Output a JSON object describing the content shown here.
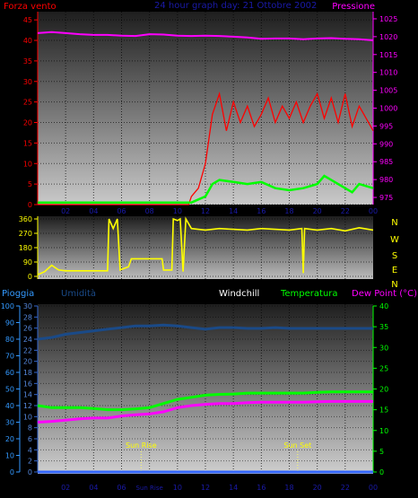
{
  "header": {
    "left_label": "Forza vento",
    "center_label": "24 hour graph day: 21 Ottobre 2002",
    "right_label": "Pressione"
  },
  "x_ticks": [
    "02",
    "04",
    "06",
    "08",
    "10",
    "12",
    "14",
    "16",
    "18",
    "20",
    "22",
    "00"
  ],
  "lower_x_ticks": [
    "02",
    "04",
    "06",
    "Sun Rise",
    "10",
    "12",
    "14",
    "16",
    "18",
    "20",
    "22",
    "00"
  ],
  "sun": {
    "rise_label": "Sun Rise",
    "set_label": "Sun Set",
    "rise_hour": 7.4,
    "set_hour": 18.6
  },
  "chart_data": [
    {
      "type": "line",
      "name": "wind-pressure",
      "x_unit": "hour",
      "y_left": {
        "label": "Forza vento",
        "range": [
          0,
          47
        ],
        "ticks": [
          0,
          5,
          10,
          15,
          20,
          25,
          30,
          35,
          40,
          45
        ],
        "color": "#ff0000"
      },
      "y_right": {
        "label": "Pressione",
        "range": [
          973,
          1027
        ],
        "ticks": [
          975,
          980,
          985,
          990,
          995,
          1000,
          1005,
          1010,
          1015,
          1020,
          1025
        ],
        "color": "#ff00ff"
      },
      "series": [
        {
          "name": "Pressione",
          "axis": "right",
          "color": "#ff00ff",
          "points": [
            [
              0,
              1021
            ],
            [
              1,
              1021.3
            ],
            [
              2,
              1021
            ],
            [
              3,
              1020.7
            ],
            [
              4,
              1020.5
            ],
            [
              5,
              1020.5
            ],
            [
              6,
              1020.3
            ],
            [
              7,
              1020.2
            ],
            [
              8,
              1020.7
            ],
            [
              9,
              1020.6
            ],
            [
              10,
              1020.3
            ],
            [
              11,
              1020.2
            ],
            [
              12,
              1020.3
            ],
            [
              13,
              1020.2
            ],
            [
              14,
              1020
            ],
            [
              15,
              1019.8
            ],
            [
              16,
              1019.4
            ],
            [
              17,
              1019.5
            ],
            [
              18,
              1019.5
            ],
            [
              19,
              1019.3
            ],
            [
              20,
              1019.5
            ],
            [
              21,
              1019.6
            ],
            [
              22,
              1019.4
            ],
            [
              23,
              1019.3
            ],
            [
              24,
              1019
            ]
          ]
        },
        {
          "name": "Forza vento (raffiche)",
          "axis": "left",
          "color": "#ff0000",
          "points": [
            [
              0,
              0
            ],
            [
              10.8,
              0
            ],
            [
              11,
              2
            ],
            [
              11.5,
              4
            ],
            [
              12,
              10
            ],
            [
              12.5,
              22
            ],
            [
              13,
              27
            ],
            [
              13.5,
              18
            ],
            [
              14,
              25
            ],
            [
              14.5,
              20
            ],
            [
              15,
              24
            ],
            [
              15.5,
              19
            ],
            [
              16,
              22
            ],
            [
              16.5,
              26
            ],
            [
              17,
              20
            ],
            [
              17.5,
              24
            ],
            [
              18,
              21
            ],
            [
              18.5,
              25
            ],
            [
              19,
              20
            ],
            [
              19.5,
              24
            ],
            [
              20,
              27
            ],
            [
              20.5,
              21
            ],
            [
              21,
              26
            ],
            [
              21.5,
              20
            ],
            [
              22,
              27
            ],
            [
              22.5,
              19
            ],
            [
              23,
              24
            ],
            [
              23.5,
              21
            ],
            [
              24,
              18
            ]
          ]
        },
        {
          "name": "Forza vento (media)",
          "axis": "left",
          "color": "#00ff00",
          "points": [
            [
              0,
              0.5
            ],
            [
              11,
              0.5
            ],
            [
              12,
              2
            ],
            [
              12.5,
              5
            ],
            [
              13,
              6
            ],
            [
              14,
              5.5
            ],
            [
              15,
              5
            ],
            [
              16,
              5.5
            ],
            [
              17,
              4
            ],
            [
              18,
              3.5
            ],
            [
              19,
              4
            ],
            [
              20,
              5
            ],
            [
              20.5,
              7
            ],
            [
              21,
              6
            ],
            [
              22,
              4
            ],
            [
              22.5,
              3
            ],
            [
              23,
              5
            ],
            [
              24,
              4
            ]
          ]
        }
      ]
    },
    {
      "type": "line",
      "name": "wind-direction",
      "x_unit": "hour",
      "y_left": {
        "range": [
          0,
          360
        ],
        "ticks": [
          0,
          90,
          180,
          270,
          360
        ]
      },
      "y_right_labels": [
        "N",
        "W",
        "S",
        "E",
        "N"
      ],
      "series": [
        {
          "name": "Direzione",
          "color": "#ffff00",
          "points": [
            [
              0,
              10
            ],
            [
              0.5,
              30
            ],
            [
              1,
              70
            ],
            [
              1.5,
              40
            ],
            [
              2,
              35
            ],
            [
              5,
              35
            ],
            [
              5.1,
              360
            ],
            [
              5.4,
              300
            ],
            [
              5.7,
              360
            ],
            [
              5.9,
              40
            ],
            [
              6.5,
              60
            ],
            [
              6.7,
              110
            ],
            [
              8.9,
              110
            ],
            [
              9,
              40
            ],
            [
              9.6,
              40
            ],
            [
              9.7,
              360
            ],
            [
              10,
              350
            ],
            [
              10.2,
              360
            ],
            [
              10.4,
              30
            ],
            [
              10.6,
              360
            ],
            [
              11,
              300
            ],
            [
              12,
              290
            ],
            [
              13,
              300
            ],
            [
              14,
              295
            ],
            [
              15,
              290
            ],
            [
              16,
              300
            ],
            [
              17,
              295
            ],
            [
              18,
              290
            ],
            [
              18.9,
              300
            ],
            [
              19,
              20
            ],
            [
              19.1,
              300
            ],
            [
              20,
              290
            ],
            [
              21,
              300
            ],
            [
              22,
              285
            ],
            [
              23,
              305
            ],
            [
              24,
              290
            ]
          ]
        }
      ]
    },
    {
      "type": "line",
      "name": "rain-humidity-temperature",
      "x_unit": "hour",
      "y_left_outer": {
        "label": "Pioggia",
        "range": [
          0,
          100
        ],
        "ticks": [
          0,
          10,
          20,
          30,
          40,
          50,
          60,
          70,
          80,
          90,
          100
        ]
      },
      "y_left_inner": {
        "label": "Umidità",
        "range": [
          0,
          30
        ],
        "ticks": [
          0,
          2,
          4,
          6,
          8,
          10,
          12,
          14,
          16,
          18,
          20,
          22,
          24,
          26,
          28,
          30
        ]
      },
      "y_right": {
        "label": "Temperatura",
        "range": [
          0,
          40
        ],
        "ticks": [
          0,
          5,
          10,
          15,
          20,
          25,
          30,
          35,
          40
        ]
      },
      "legend": [
        {
          "label": "Windchill",
          "color": "#ffffff"
        },
        {
          "label": "Temperatura",
          "color": "#00ff00"
        },
        {
          "label": "Dew Point (°C)",
          "color": "#ff00ff"
        }
      ],
      "series": [
        {
          "name": "Umidità",
          "axis": "left_outer",
          "color": "#1a4a88",
          "points": [
            [
              0,
              80
            ],
            [
              1,
              81
            ],
            [
              2,
              83
            ],
            [
              3,
              84
            ],
            [
              4,
              85
            ],
            [
              5,
              86
            ],
            [
              6,
              87
            ],
            [
              7,
              88
            ],
            [
              8,
              88
            ],
            [
              9,
              88.5
            ],
            [
              10,
              88
            ],
            [
              11,
              87
            ],
            [
              12,
              86
            ],
            [
              13,
              87
            ],
            [
              14,
              87
            ],
            [
              15,
              86.5
            ],
            [
              16,
              86.5
            ],
            [
              17,
              87
            ],
            [
              18,
              86.5
            ],
            [
              19,
              86.5
            ],
            [
              20,
              86.5
            ],
            [
              21,
              86.5
            ],
            [
              22,
              86.5
            ],
            [
              23,
              86.5
            ],
            [
              24,
              86.5
            ]
          ]
        },
        {
          "name": "Temperatura",
          "axis": "right",
          "color": "#00ff00",
          "points": [
            [
              0,
              16
            ],
            [
              1,
              15.5
            ],
            [
              2,
              15.5
            ],
            [
              3,
              15.5
            ],
            [
              4,
              15.3
            ],
            [
              5,
              15
            ],
            [
              6,
              15
            ],
            [
              7,
              15.2
            ],
            [
              8,
              15.5
            ],
            [
              9,
              16.5
            ],
            [
              10,
              17.5
            ],
            [
              11,
              18
            ],
            [
              12,
              18.5
            ],
            [
              13,
              18.7
            ],
            [
              14,
              18.8
            ],
            [
              15,
              19
            ],
            [
              16,
              19
            ],
            [
              17,
              19
            ],
            [
              18,
              19
            ],
            [
              19,
              19
            ],
            [
              20,
              19.2
            ],
            [
              21,
              19.3
            ],
            [
              22,
              19.3
            ],
            [
              23,
              19.3
            ],
            [
              24,
              19.3
            ]
          ]
        },
        {
          "name": "Dew Point",
          "axis": "right",
          "color": "#ff00ff",
          "points": [
            [
              0,
              12
            ],
            [
              1,
              12.2
            ],
            [
              2,
              12.5
            ],
            [
              3,
              12.8
            ],
            [
              4,
              13
            ],
            [
              5,
              13
            ],
            [
              6,
              13.5
            ],
            [
              7,
              13.8
            ],
            [
              8,
              14
            ],
            [
              9,
              14.5
            ],
            [
              10,
              15.5
            ],
            [
              11,
              16
            ],
            [
              12,
              16.3
            ],
            [
              13,
              16.5
            ],
            [
              14,
              16.5
            ],
            [
              15,
              16.7
            ],
            [
              16,
              16.8
            ],
            [
              17,
              16.8
            ],
            [
              18,
              16.8
            ],
            [
              19,
              16.8
            ],
            [
              20,
              16.9
            ],
            [
              21,
              17
            ],
            [
              22,
              17
            ],
            [
              23,
              17
            ],
            [
              24,
              17
            ]
          ]
        },
        {
          "name": "Pioggia",
          "axis": "left_outer",
          "color": "#3366ff",
          "points": [
            [
              0,
              0
            ],
            [
              24,
              0
            ]
          ]
        }
      ]
    }
  ]
}
